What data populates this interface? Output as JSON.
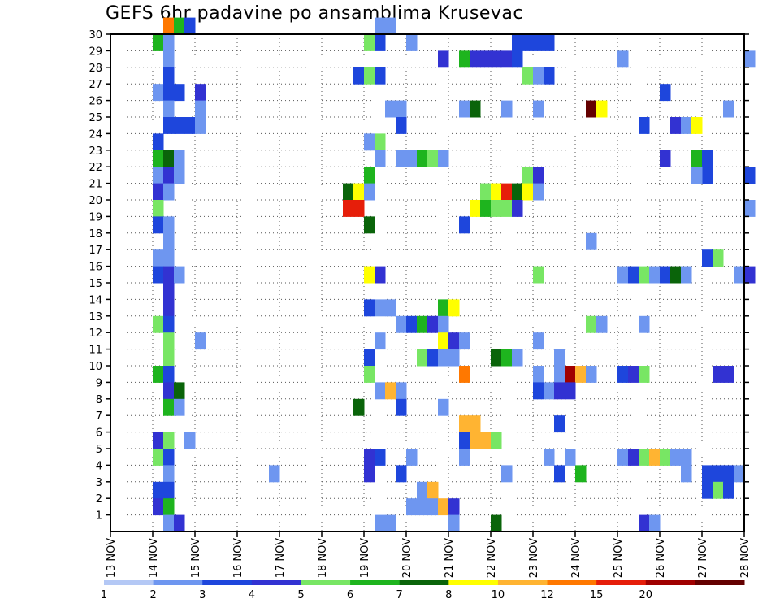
{
  "chart_data": {
    "type": "heatmap",
    "title": "GEFS 6hr padavine po ansamblima Krusevac",
    "xlabel": "",
    "ylabel": "",
    "x_tick_labels": [
      "13 NOV",
      "14 NOV",
      "15 NOV",
      "16 NOV",
      "17 NOV",
      "18 NOV",
      "19 NOV",
      "20 NOV",
      "21 NOV",
      "22 NOV",
      "23 NOV",
      "24 NOV",
      "25 NOV",
      "26 NOV",
      "27 NOV",
      "28 NOV"
    ],
    "x_range_days": [
      13,
      28
    ],
    "y_tick_labels": [
      "1",
      "2",
      "3",
      "4",
      "5",
      "6",
      "7",
      "8",
      "9",
      "10",
      "11",
      "12",
      "13",
      "14",
      "15",
      "16",
      "17",
      "18",
      "19",
      "20",
      "21",
      "22",
      "23",
      "24",
      "25",
      "26",
      "27",
      "28",
      "29",
      "30"
    ],
    "y_range": [
      0,
      30
    ],
    "grid": true,
    "legend_position": "bottom",
    "color_scale": {
      "colors": [
        "#b4c8f5",
        "#6e96f0",
        "#1e46dc",
        "#3232d2",
        "#78e664",
        "#1eb41e",
        "#0a640a",
        "#ffff00",
        "#ffb432",
        "#ff7800",
        "#e61e0a",
        "#a00000",
        "#640000"
      ],
      "labels": [
        "1",
        "2",
        "3",
        "4",
        "5",
        "6",
        "7",
        "8",
        "10",
        "12",
        "15",
        "20"
      ],
      "label_positions": [
        0,
        1,
        2,
        3,
        4,
        5,
        6,
        7,
        8,
        9,
        10,
        11
      ]
    },
    "cells": [
      [
        14.25,
        30,
        9
      ],
      [
        14.5,
        30,
        5
      ],
      [
        14.75,
        30,
        2
      ],
      [
        19.25,
        30,
        1
      ],
      [
        19.5,
        30,
        1
      ],
      [
        14.0,
        29,
        5
      ],
      [
        14.25,
        29,
        1
      ],
      [
        19.0,
        29,
        4
      ],
      [
        19.25,
        29,
        2
      ],
      [
        20.0,
        29,
        1
      ],
      [
        22.5,
        29,
        2
      ],
      [
        22.75,
        29,
        2
      ],
      [
        23.0,
        29,
        2
      ],
      [
        23.25,
        29,
        2
      ],
      [
        14.25,
        28,
        1
      ],
      [
        20.75,
        28,
        3
      ],
      [
        21.25,
        28,
        5
      ],
      [
        21.5,
        28,
        3
      ],
      [
        21.75,
        28,
        3
      ],
      [
        22.0,
        28,
        3
      ],
      [
        22.25,
        28,
        3
      ],
      [
        22.5,
        28,
        2
      ],
      [
        25.0,
        28,
        1
      ],
      [
        28.0,
        28,
        1
      ],
      [
        14.25,
        27,
        2
      ],
      [
        18.75,
        27,
        2
      ],
      [
        19.0,
        27,
        4
      ],
      [
        19.25,
        27,
        2
      ],
      [
        22.75,
        27,
        4
      ],
      [
        23.0,
        27,
        1
      ],
      [
        23.25,
        27,
        2
      ],
      [
        14.0,
        26,
        1
      ],
      [
        14.25,
        26,
        2
      ],
      [
        14.5,
        26,
        2
      ],
      [
        15.0,
        26,
        3
      ],
      [
        26.0,
        26,
        2
      ],
      [
        14.25,
        25,
        1
      ],
      [
        15.0,
        25,
        1
      ],
      [
        19.5,
        25,
        1
      ],
      [
        19.75,
        25,
        1
      ],
      [
        21.25,
        25,
        1
      ],
      [
        21.5,
        25,
        6
      ],
      [
        22.25,
        25,
        1
      ],
      [
        23.0,
        25,
        1
      ],
      [
        24.25,
        25,
        12
      ],
      [
        24.5,
        25,
        7
      ],
      [
        27.5,
        25,
        1
      ],
      [
        14.25,
        24,
        2
      ],
      [
        14.5,
        24,
        2
      ],
      [
        14.75,
        24,
        2
      ],
      [
        15.0,
        24,
        1
      ],
      [
        19.75,
        24,
        2
      ],
      [
        25.5,
        24,
        2
      ],
      [
        26.25,
        24,
        3
      ],
      [
        26.5,
        24,
        1
      ],
      [
        26.75,
        24,
        7
      ],
      [
        14.0,
        23,
        2
      ],
      [
        19.0,
        23,
        1
      ],
      [
        19.25,
        23,
        4
      ],
      [
        14.0,
        22,
        5
      ],
      [
        14.25,
        22,
        6
      ],
      [
        14.5,
        22,
        1
      ],
      [
        19.25,
        22,
        1
      ],
      [
        19.75,
        22,
        1
      ],
      [
        20.0,
        22,
        1
      ],
      [
        20.25,
        22,
        5
      ],
      [
        20.5,
        22,
        4
      ],
      [
        20.75,
        22,
        1
      ],
      [
        26.0,
        22,
        3
      ],
      [
        26.75,
        22,
        5
      ],
      [
        27.0,
        22,
        2
      ],
      [
        14.0,
        21,
        1
      ],
      [
        14.25,
        21,
        3
      ],
      [
        14.5,
        21,
        1
      ],
      [
        19.0,
        21,
        5
      ],
      [
        22.75,
        21,
        4
      ],
      [
        23.0,
        21,
        3
      ],
      [
        27.0,
        21,
        2
      ],
      [
        26.75,
        21,
        1
      ],
      [
        28.0,
        21,
        2
      ],
      [
        14.0,
        20,
        3
      ],
      [
        14.25,
        20,
        1
      ],
      [
        18.5,
        20,
        6
      ],
      [
        18.75,
        20,
        7
      ],
      [
        19.0,
        20,
        1
      ],
      [
        21.75,
        20,
        4
      ],
      [
        22.0,
        20,
        7
      ],
      [
        22.25,
        20,
        10
      ],
      [
        22.5,
        20,
        6
      ],
      [
        22.75,
        20,
        7
      ],
      [
        23.0,
        20,
        1
      ],
      [
        14.0,
        19,
        4
      ],
      [
        18.5,
        19,
        10
      ],
      [
        18.75,
        19,
        10
      ],
      [
        21.5,
        19,
        7
      ],
      [
        21.75,
        19,
        5
      ],
      [
        22.0,
        19,
        4
      ],
      [
        22.25,
        19,
        4
      ],
      [
        22.5,
        19,
        3
      ],
      [
        28.0,
        19,
        1
      ],
      [
        14.0,
        18,
        2
      ],
      [
        14.25,
        18,
        1
      ],
      [
        19.0,
        18,
        6
      ],
      [
        21.25,
        18,
        2
      ],
      [
        14.25,
        17,
        1
      ],
      [
        24.25,
        17,
        1
      ],
      [
        14.0,
        16,
        1
      ],
      [
        14.25,
        16,
        1
      ],
      [
        27.0,
        16,
        2
      ],
      [
        27.25,
        16,
        4
      ],
      [
        14.0,
        15,
        2
      ],
      [
        14.25,
        15,
        3
      ],
      [
        14.5,
        15,
        1
      ],
      [
        19.0,
        15,
        7
      ],
      [
        19.25,
        15,
        3
      ],
      [
        23.0,
        15,
        4
      ],
      [
        25.0,
        15,
        1
      ],
      [
        25.25,
        15,
        2
      ],
      [
        25.5,
        15,
        4
      ],
      [
        25.75,
        15,
        1
      ],
      [
        26.0,
        15,
        2
      ],
      [
        26.25,
        15,
        6
      ],
      [
        26.5,
        15,
        1
      ],
      [
        27.75,
        15,
        1
      ],
      [
        28.0,
        15,
        3
      ],
      [
        14.25,
        14,
        3
      ],
      [
        14.25,
        13,
        3
      ],
      [
        19.0,
        13,
        2
      ],
      [
        19.25,
        13,
        1
      ],
      [
        19.5,
        13,
        1
      ],
      [
        20.75,
        13,
        5
      ],
      [
        21.0,
        13,
        7
      ],
      [
        14.0,
        12,
        4
      ],
      [
        14.25,
        12,
        2
      ],
      [
        19.75,
        12,
        1
      ],
      [
        20.0,
        12,
        2
      ],
      [
        20.25,
        12,
        5
      ],
      [
        20.5,
        12,
        3
      ],
      [
        20.75,
        12,
        1
      ],
      [
        24.25,
        12,
        4
      ],
      [
        24.5,
        12,
        1
      ],
      [
        25.5,
        12,
        1
      ],
      [
        14.25,
        11,
        4
      ],
      [
        15.0,
        11,
        1
      ],
      [
        19.25,
        11,
        1
      ],
      [
        20.75,
        11,
        7
      ],
      [
        21.0,
        11,
        3
      ],
      [
        21.25,
        11,
        1
      ],
      [
        23.0,
        11,
        1
      ],
      [
        14.25,
        10,
        4
      ],
      [
        19.0,
        10,
        2
      ],
      [
        20.25,
        10,
        4
      ],
      [
        20.5,
        10,
        2
      ],
      [
        20.75,
        10,
        1
      ],
      [
        21.0,
        10,
        1
      ],
      [
        22.0,
        10,
        6
      ],
      [
        22.25,
        10,
        5
      ],
      [
        22.5,
        10,
        1
      ],
      [
        23.5,
        10,
        1
      ],
      [
        14.0,
        9,
        5
      ],
      [
        14.25,
        9,
        2
      ],
      [
        19.0,
        9,
        4
      ],
      [
        21.25,
        9,
        9
      ],
      [
        23.0,
        9,
        1
      ],
      [
        23.5,
        9,
        1
      ],
      [
        23.75,
        9,
        11
      ],
      [
        24.0,
        9,
        8
      ],
      [
        24.25,
        9,
        1
      ],
      [
        25.0,
        9,
        2
      ],
      [
        25.25,
        9,
        3
      ],
      [
        25.5,
        9,
        4
      ],
      [
        27.25,
        9,
        3
      ],
      [
        27.5,
        9,
        3
      ],
      [
        14.25,
        8,
        3
      ],
      [
        14.5,
        8,
        6
      ],
      [
        19.25,
        8,
        1
      ],
      [
        19.5,
        8,
        8
      ],
      [
        19.75,
        8,
        1
      ],
      [
        23.0,
        8,
        2
      ],
      [
        23.25,
        8,
        1
      ],
      [
        23.5,
        8,
        3
      ],
      [
        23.75,
        8,
        3
      ],
      [
        14.25,
        7,
        5
      ],
      [
        14.5,
        7,
        1
      ],
      [
        18.75,
        7,
        6
      ],
      [
        19.75,
        7,
        2
      ],
      [
        20.75,
        7,
        1
      ],
      [
        21.25,
        6,
        8
      ],
      [
        21.5,
        6,
        8
      ],
      [
        23.5,
        6,
        2
      ],
      [
        14.0,
        5,
        3
      ],
      [
        14.25,
        5,
        4
      ],
      [
        14.75,
        5,
        1
      ],
      [
        21.25,
        5,
        2
      ],
      [
        21.5,
        5,
        8
      ],
      [
        21.75,
        5,
        8
      ],
      [
        22.0,
        5,
        4
      ],
      [
        14.0,
        4,
        4
      ],
      [
        14.25,
        4,
        2
      ],
      [
        19.0,
        4,
        3
      ],
      [
        19.25,
        4,
        2
      ],
      [
        20.0,
        4,
        1
      ],
      [
        21.25,
        4,
        1
      ],
      [
        23.25,
        4,
        1
      ],
      [
        23.75,
        4,
        1
      ],
      [
        25.0,
        4,
        1
      ],
      [
        25.25,
        4,
        3
      ],
      [
        25.5,
        4,
        4
      ],
      [
        25.75,
        4,
        8
      ],
      [
        26.0,
        4,
        4
      ],
      [
        26.25,
        4,
        1
      ],
      [
        26.5,
        4,
        1
      ],
      [
        14.25,
        3,
        1
      ],
      [
        16.75,
        3,
        1
      ],
      [
        19.0,
        3,
        3
      ],
      [
        19.75,
        3,
        2
      ],
      [
        22.25,
        3,
        1
      ],
      [
        23.5,
        3,
        2
      ],
      [
        24.0,
        3,
        5
      ],
      [
        26.5,
        3,
        1
      ],
      [
        27.0,
        3,
        2
      ],
      [
        27.25,
        3,
        2
      ],
      [
        27.5,
        3,
        2
      ],
      [
        27.75,
        3,
        1
      ],
      [
        14.0,
        2,
        2
      ],
      [
        14.25,
        2,
        2
      ],
      [
        20.25,
        2,
        1
      ],
      [
        20.5,
        2,
        8
      ],
      [
        27.0,
        2,
        2
      ],
      [
        27.25,
        2,
        4
      ],
      [
        27.5,
        2,
        2
      ],
      [
        14.0,
        1,
        3
      ],
      [
        14.25,
        1,
        5
      ],
      [
        20.0,
        1,
        1
      ],
      [
        20.25,
        1,
        1
      ],
      [
        20.5,
        1,
        1
      ],
      [
        20.75,
        1,
        8
      ],
      [
        21.0,
        1,
        3
      ],
      [
        14.25,
        0,
        1
      ],
      [
        14.5,
        0,
        3
      ],
      [
        19.25,
        0,
        1
      ],
      [
        19.5,
        0,
        1
      ],
      [
        21.0,
        0,
        1
      ],
      [
        22.0,
        0,
        6
      ],
      [
        25.5,
        0,
        3
      ],
      [
        25.75,
        0,
        1
      ]
    ]
  }
}
